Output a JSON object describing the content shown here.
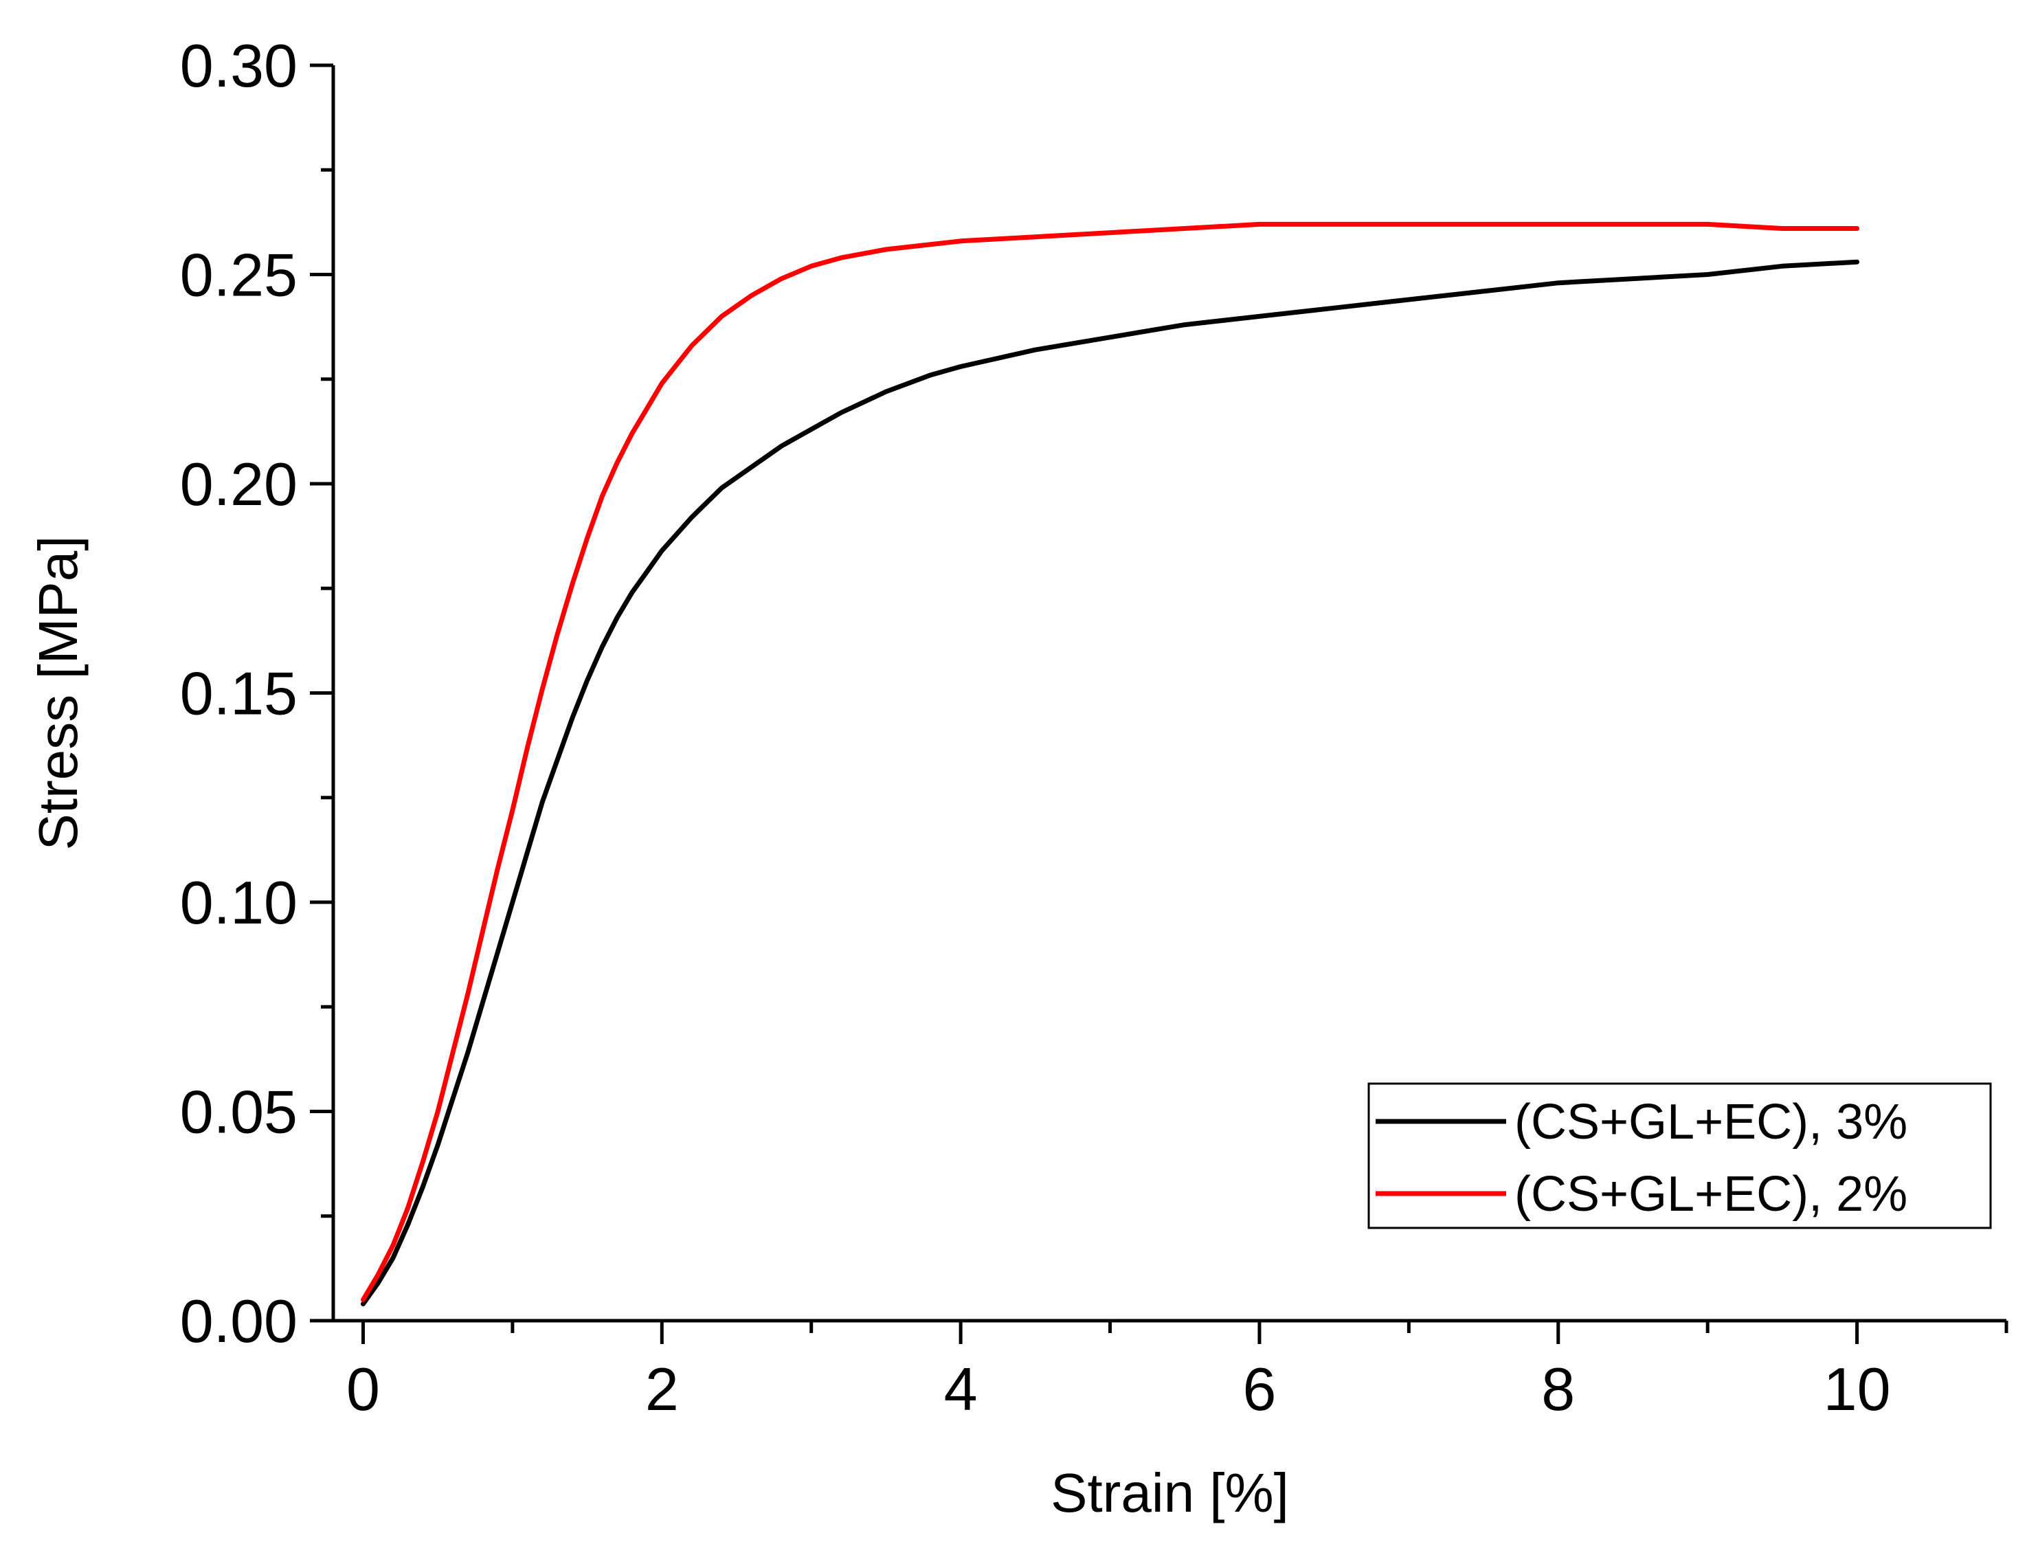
{
  "chart_data": {
    "type": "line",
    "title": "",
    "xlabel": "Strain [%]",
    "ylabel": "Stress [MPa]",
    "xlim": [
      -0.2,
      11
    ],
    "ylim": [
      0,
      0.3
    ],
    "x_ticks": [
      0,
      2,
      4,
      6,
      8,
      10
    ],
    "x_tick_labels": [
      "0",
      "2",
      "4",
      "6",
      "8",
      "10"
    ],
    "x_minor_ticks": [
      1,
      3,
      5,
      7,
      9,
      11
    ],
    "y_ticks": [
      0,
      0.05,
      0.1,
      0.15,
      0.2,
      0.25,
      0.3
    ],
    "y_tick_labels": [
      "0.00",
      "0.05",
      "0.10",
      "0.15",
      "0.20",
      "0.25",
      "0.30"
    ],
    "y_minor_ticks": [
      0.025,
      0.075,
      0.125,
      0.175,
      0.225,
      0.275
    ],
    "grid": false,
    "legend_position": "bottom-right",
    "series": [
      {
        "name": "(CS+GL+EC), 3%",
        "color": "#000000",
        "x": [
          0,
          0.1,
          0.2,
          0.3,
          0.4,
          0.5,
          0.6,
          0.7,
          0.8,
          0.9,
          1.0,
          1.1,
          1.2,
          1.3,
          1.4,
          1.5,
          1.6,
          1.7,
          1.8,
          1.9,
          2.0,
          2.2,
          2.4,
          2.6,
          2.8,
          3.0,
          3.2,
          3.5,
          3.8,
          4.0,
          4.5,
          5.0,
          5.5,
          6.0,
          6.5,
          7.0,
          7.5,
          8.0,
          8.5,
          9.0,
          9.5,
          10.0
        ],
        "y": [
          0.004,
          0.009,
          0.015,
          0.023,
          0.032,
          0.042,
          0.053,
          0.064,
          0.076,
          0.088,
          0.1,
          0.112,
          0.124,
          0.134,
          0.144,
          0.153,
          0.161,
          0.168,
          0.174,
          0.179,
          0.184,
          0.192,
          0.199,
          0.204,
          0.209,
          0.213,
          0.217,
          0.222,
          0.226,
          0.228,
          0.232,
          0.235,
          0.238,
          0.24,
          0.242,
          0.244,
          0.246,
          0.248,
          0.249,
          0.25,
          0.252,
          0.253
        ]
      },
      {
        "name": "(CS+GL+EC), 2%",
        "color": "#ff0000",
        "x": [
          0,
          0.1,
          0.2,
          0.3,
          0.4,
          0.5,
          0.6,
          0.7,
          0.8,
          0.9,
          1.0,
          1.1,
          1.2,
          1.3,
          1.4,
          1.5,
          1.6,
          1.7,
          1.8,
          1.9,
          2.0,
          2.2,
          2.4,
          2.6,
          2.8,
          3.0,
          3.2,
          3.5,
          4.0,
          4.5,
          5.0,
          5.5,
          6.0,
          6.5,
          7.0,
          7.5,
          8.0,
          8.5,
          9.0,
          9.5,
          10.0
        ],
        "y": [
          0.005,
          0.011,
          0.018,
          0.027,
          0.038,
          0.05,
          0.064,
          0.078,
          0.093,
          0.108,
          0.122,
          0.137,
          0.151,
          0.164,
          0.176,
          0.187,
          0.197,
          0.205,
          0.212,
          0.218,
          0.224,
          0.233,
          0.24,
          0.245,
          0.249,
          0.252,
          0.254,
          0.256,
          0.258,
          0.259,
          0.26,
          0.261,
          0.262,
          0.262,
          0.262,
          0.262,
          0.262,
          0.262,
          0.262,
          0.261,
          0.261
        ]
      }
    ]
  }
}
